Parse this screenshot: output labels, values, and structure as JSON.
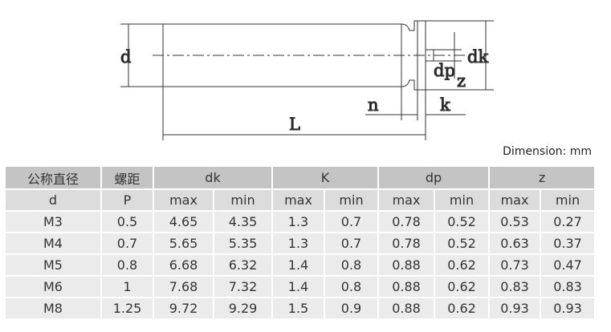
{
  "diagram": {
    "labels": {
      "d": "d",
      "dk": "dk",
      "dp": "dp",
      "z": "z",
      "n": "n",
      "k": "k",
      "L": "L"
    }
  },
  "unit_note": "Dimension: mm",
  "table": {
    "header": [
      "公称直径",
      "螺距",
      "dk",
      "K",
      "dp",
      "z"
    ],
    "subheader": [
      "d",
      "P",
      "max",
      "min",
      "max",
      "min",
      "max",
      "min",
      "max",
      "min"
    ],
    "rows": [
      [
        "M3",
        "0.5",
        "4.65",
        "4.35",
        "1.3",
        "0.7",
        "0.78",
        "0.52",
        "0.53",
        "0.27"
      ],
      [
        "M4",
        "0.7",
        "5.65",
        "5.35",
        "1.3",
        "0.7",
        "0.78",
        "0.52",
        "0.63",
        "0.37"
      ],
      [
        "M5",
        "0.8",
        "6.68",
        "6.32",
        "1.4",
        "0.8",
        "0.88",
        "0.62",
        "0.73",
        "0.47"
      ],
      [
        "M6",
        "1",
        "7.68",
        "7.32",
        "1.4",
        "0.8",
        "0.88",
        "0.62",
        "0.83",
        "0.83"
      ],
      [
        "M8",
        "1.25",
        "9.72",
        "9.29",
        "1.5",
        "0.9",
        "0.88",
        "0.62",
        "0.93",
        "0.93"
      ]
    ]
  }
}
